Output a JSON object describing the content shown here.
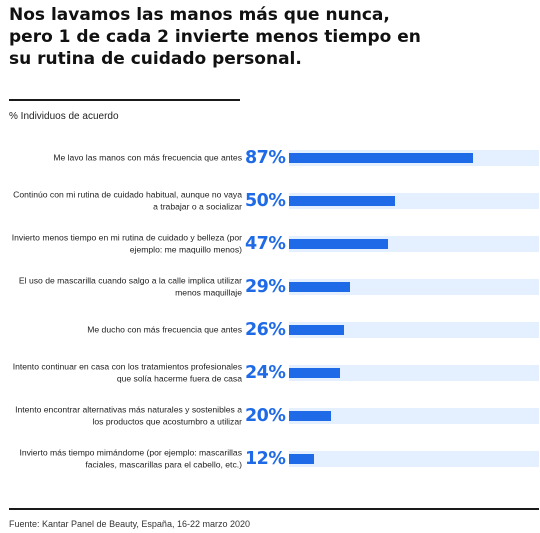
{
  "title": "Nos lavamos las manos más que nunca, pero 1 de cada 2 invierte menos tiempo en su rutina de cuidado personal.",
  "subtitle": "% Individuos de acuerdo",
  "source": "Fuente: Kantar Panel de Beauty, España, 16-22 marzo 2020",
  "colors": {
    "bar": "#1f6ae6",
    "track": "#e4efff",
    "value_text": "#1f6ae6"
  },
  "chart_data": {
    "type": "bar",
    "orientation": "horizontal",
    "categories": [
      "Me lavo las manos con más frecuencia que antes",
      "Continúo con mi rutina de cuidado habitual, aunque no vaya a trabajar o a socializar",
      "Invierto menos tiempo en mi rutina de cuidado y belleza (por ejemplo: me maquillo menos)",
      "El uso de mascarilla cuando salgo a la calle implica utilizar menos maquillaje",
      "Me ducho con más frecuencia que antes",
      "Intento continuar en casa con los tratamientos profesionales que solía hacerme fuera de casa",
      "Intento encontrar alternativas más naturales y sostenibles a los productos que acostumbro a utilizar",
      "Invierto más tiempo mimándome (por ejemplo: mascarillas faciales, mascarillas para el cabello, etc.)"
    ],
    "values": [
      87,
      50,
      47,
      29,
      26,
      24,
      20,
      12
    ],
    "value_labels": [
      "87%",
      "50%",
      "47%",
      "29%",
      "26%",
      "24%",
      "20%",
      "12%"
    ],
    "xlim": [
      0,
      100
    ]
  }
}
